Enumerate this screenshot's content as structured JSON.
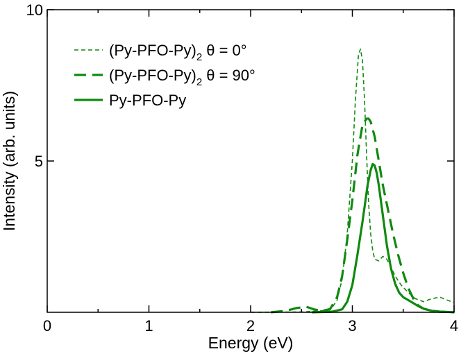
{
  "chart_data": {
    "type": "line",
    "title": "",
    "xlabel": "Energy (eV)",
    "ylabel": "Intensity (arb. units)",
    "xlim": [
      0,
      4
    ],
    "ylim": [
      0,
      10
    ],
    "xticks": [
      0,
      1,
      2,
      3,
      4
    ],
    "xtick_labels": [
      "0",
      "1",
      "2",
      "3",
      "4"
    ],
    "yticks": [
      5,
      10
    ],
    "ytick_labels": [
      "5",
      "10"
    ],
    "grid": false,
    "legend_position": "top-left",
    "color": "#0f8a0f",
    "series": [
      {
        "name": "(Py-PFO-Py)2 θ = 0°",
        "legend_main": "(Py-PFO-Py)",
        "legend_sub": "2",
        "legend_tail": "θ = 0°",
        "style": "dashed-thin",
        "x": [
          2.0,
          2.5,
          2.7,
          2.8,
          2.85,
          2.9,
          2.95,
          3.0,
          3.03,
          3.06,
          3.08,
          3.1,
          3.12,
          3.14,
          3.16,
          3.18,
          3.2,
          3.22,
          3.26,
          3.3,
          3.34,
          3.38,
          3.42,
          3.48,
          3.55,
          3.62,
          3.7,
          3.78,
          3.86,
          3.95,
          4.0
        ],
        "y": [
          0.0,
          0.01,
          0.05,
          0.15,
          0.4,
          1.1,
          2.6,
          5.0,
          7.0,
          8.5,
          8.7,
          8.3,
          7.0,
          5.2,
          3.6,
          2.6,
          2.05,
          1.75,
          1.7,
          1.85,
          1.75,
          1.5,
          1.2,
          0.9,
          0.65,
          0.45,
          0.35,
          0.45,
          0.5,
          0.38,
          0.32
        ]
      },
      {
        "name": "(Py-PFO-Py)2 θ = 90°",
        "legend_main": "(Py-PFO-Py)",
        "legend_sub": "2",
        "legend_tail": "θ = 90°",
        "style": "dashed-thick",
        "x": [
          2.2,
          2.35,
          2.45,
          2.55,
          2.62,
          2.7,
          2.78,
          2.85,
          2.9,
          2.95,
          3.0,
          3.05,
          3.1,
          3.14,
          3.16,
          3.18,
          3.22,
          3.26,
          3.3,
          3.35,
          3.4,
          3.45,
          3.5,
          3.55,
          3.6,
          3.65,
          3.7,
          3.78,
          3.86,
          3.95,
          4.0
        ],
        "y": [
          0.0,
          0.05,
          0.14,
          0.18,
          0.1,
          0.05,
          0.1,
          0.5,
          1.2,
          2.4,
          3.7,
          5.2,
          6.2,
          6.4,
          6.4,
          6.3,
          5.8,
          5.0,
          4.2,
          3.4,
          2.6,
          1.9,
          1.3,
          0.8,
          0.45,
          0.22,
          0.12,
          0.05,
          0.02,
          0.01,
          0.0
        ]
      },
      {
        "name": "Py-PFO-Py",
        "legend_main": "Py-PFO-Py",
        "legend_sub": "",
        "legend_tail": "",
        "style": "solid",
        "x": [
          2.6,
          2.8,
          2.9,
          2.95,
          3.0,
          3.05,
          3.1,
          3.15,
          3.18,
          3.2,
          3.22,
          3.24,
          3.26,
          3.3,
          3.34,
          3.38,
          3.42,
          3.46,
          3.5,
          3.55,
          3.6,
          3.65,
          3.7,
          3.78,
          3.86,
          3.95,
          4.0
        ],
        "y": [
          0.0,
          0.02,
          0.1,
          0.35,
          0.9,
          1.9,
          3.0,
          4.2,
          4.7,
          4.9,
          4.85,
          4.6,
          4.2,
          3.2,
          2.2,
          1.45,
          0.95,
          0.65,
          0.5,
          0.4,
          0.3,
          0.2,
          0.12,
          0.05,
          0.02,
          0.01,
          0.0
        ]
      }
    ]
  }
}
